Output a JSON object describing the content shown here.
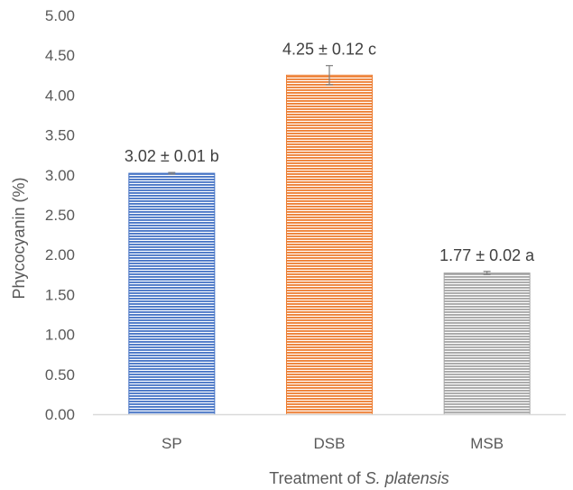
{
  "chart_data": {
    "type": "bar",
    "categories": [
      "SP",
      "DSB",
      "MSB"
    ],
    "values": [
      3.02,
      4.25,
      1.77
    ],
    "errors": [
      0.01,
      0.12,
      0.02
    ],
    "data_labels": [
      "3.02 ± 0.01 b",
      "4.25 ± 0.12 c",
      "1.77 ± 0.02 a"
    ],
    "y_ticks": [
      "0.00",
      "0.50",
      "1.00",
      "1.50",
      "2.00",
      "2.50",
      "3.00",
      "3.50",
      "4.00",
      "4.50",
      "5.00"
    ],
    "ylim": [
      0,
      5
    ],
    "ylabel": "Phycocyanin (%)",
    "xlabel_prefix": "Treatment of ",
    "xlabel_italic": "S. platensis",
    "grid": false,
    "legend": "none",
    "colors": {
      "bar_fills": [
        "#4472c4",
        "#ed7d31",
        "#a5a5a5"
      ],
      "axis": "#d9d9d9",
      "error_bar": "#7f7f7f"
    }
  }
}
